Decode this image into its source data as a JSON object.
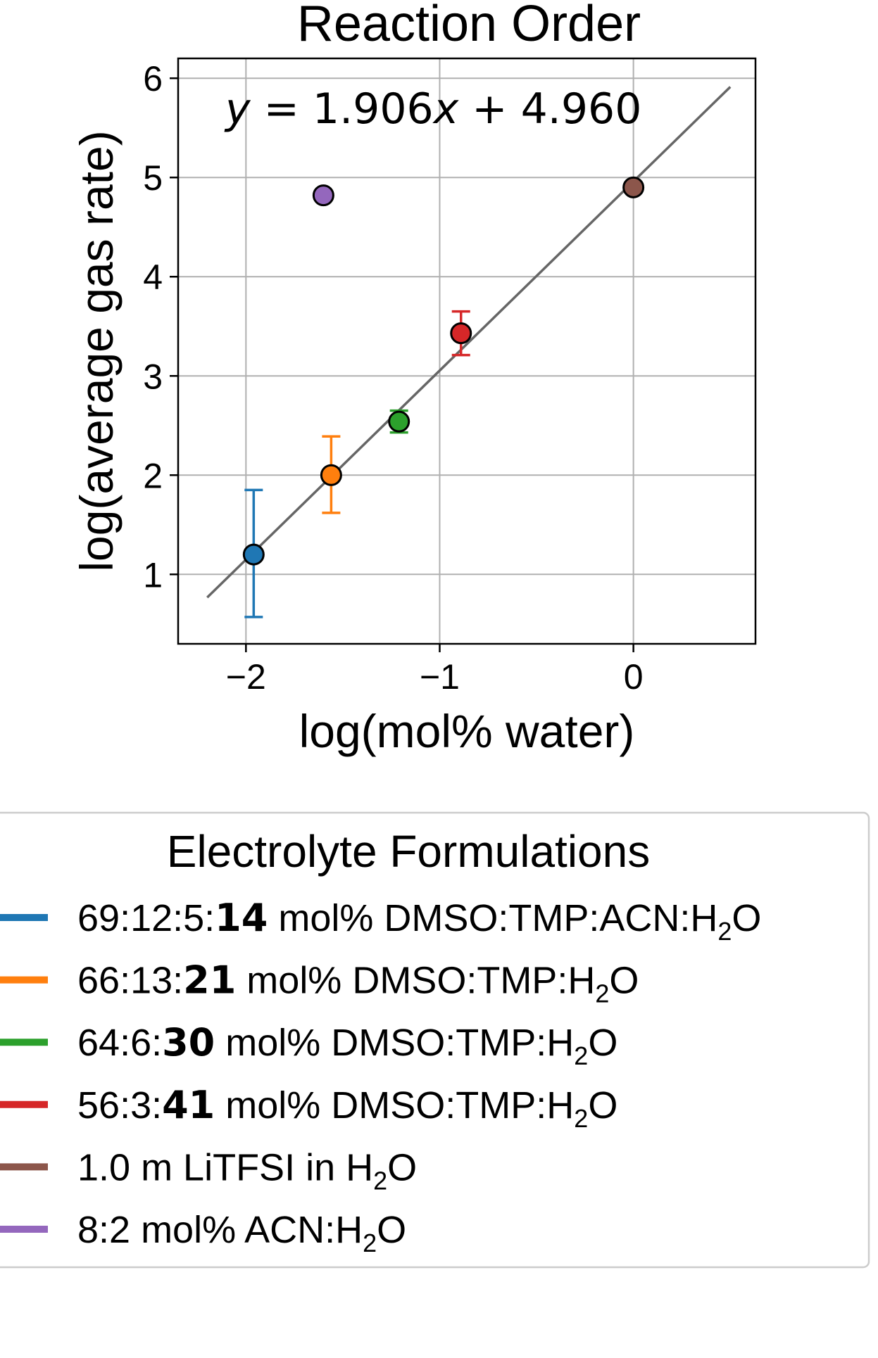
{
  "chart_data": {
    "type": "scatter",
    "title": "Reaction Order",
    "xlabel": "log(mol% water)",
    "ylabel": "log(average gas rate)",
    "xlim": [
      -2.35,
      0.63
    ],
    "ylim": [
      0.3,
      6.2
    ],
    "xticks": [
      -2,
      -1,
      0
    ],
    "xtick_labels": [
      "−2",
      "−1",
      "0"
    ],
    "yticks": [
      1,
      2,
      3,
      4,
      5,
      6
    ],
    "ytick_labels": [
      "1",
      "2",
      "3",
      "4",
      "5",
      "6"
    ],
    "grid": true,
    "fit_line": {
      "slope": 1.906,
      "intercept": 4.96,
      "x_range": [
        -2.2,
        0.5
      ],
      "equation": {
        "lhs": "y",
        "eq": " = 1.906",
        "var": "x",
        "rest": " + 4.960"
      },
      "color": "#666666"
    },
    "series": [
      {
        "x": -1.96,
        "y": 1.2,
        "err_low": 0.63,
        "err_high": 0.65,
        "color": "#1f77b4"
      },
      {
        "x": -1.56,
        "y": 2.0,
        "err_low": 0.38,
        "err_high": 0.39,
        "color": "#ff7f0e"
      },
      {
        "x": -1.21,
        "y": 2.54,
        "err_low": 0.11,
        "err_high": 0.11,
        "color": "#2ca02c"
      },
      {
        "x": -0.89,
        "y": 3.43,
        "err_low": 0.22,
        "err_high": 0.22,
        "color": "#d62728"
      },
      {
        "x": 0.0,
        "y": 4.9,
        "err_low": 0,
        "err_high": 0,
        "color": "#8c564b"
      },
      {
        "x": -1.6,
        "y": 4.82,
        "err_low": 0,
        "err_high": 0,
        "color": "#9467bd"
      }
    ],
    "legend": {
      "title": "Electrolyte Formulations",
      "placement": "below",
      "entries": [
        {
          "color": "#1f77b4",
          "prefix": "69:12:5:",
          "bold": "14",
          "suffix": " mol% DMSO:TMP:ACN:H",
          "sub": "2",
          "tail": "O"
        },
        {
          "color": "#ff7f0e",
          "prefix": "66:13:",
          "bold": "21",
          "suffix": " mol% DMSO:TMP:H",
          "sub": "2",
          "tail": "O"
        },
        {
          "color": "#2ca02c",
          "prefix": "64:6:",
          "bold": "30",
          "suffix": " mol% DMSO:TMP:H",
          "sub": "2",
          "tail": "O"
        },
        {
          "color": "#d62728",
          "prefix": "56:3:",
          "bold": "41",
          "suffix": " mol% DMSO:TMP:H",
          "sub": "2",
          "tail": "O"
        },
        {
          "color": "#8c564b",
          "prefix": "1.0 m LiTFSI in H",
          "bold": "",
          "suffix": "",
          "sub": "2",
          "tail": "O"
        },
        {
          "color": "#9467bd",
          "prefix": "8:2 mol% ACN:H",
          "bold": "",
          "suffix": "",
          "sub": "2",
          "tail": "O"
        }
      ]
    }
  }
}
